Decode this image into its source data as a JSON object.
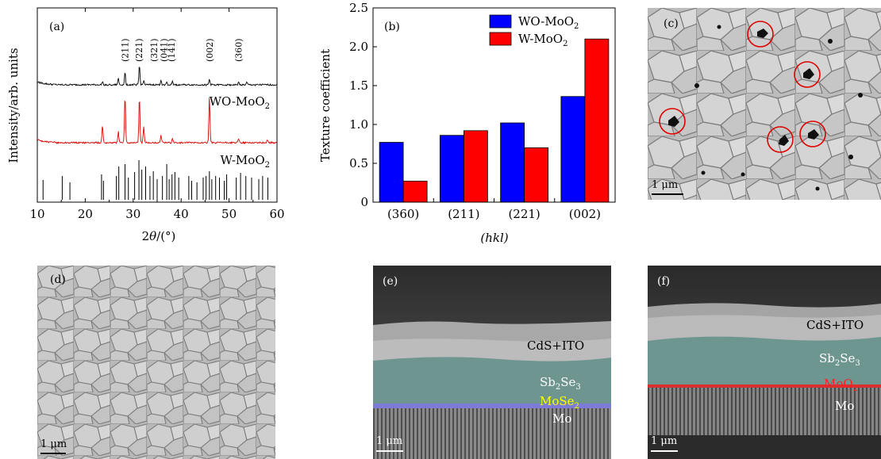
{
  "panel_a": {
    "label": "(a)",
    "xlabel_parts": [
      "2",
      "θ",
      "/(°)"
    ],
    "ylabel": "Intensity/arb. units",
    "xticks": [
      "10",
      "20",
      "30",
      "40",
      "50",
      "60"
    ],
    "sample_top": {
      "base": "WO-MoO",
      "sub": "2"
    },
    "sample_bottom": {
      "base": "W-MoO",
      "sub": "2"
    },
    "peak_labels": [
      {
        "text": "(211)",
        "x": 28.3
      },
      {
        "text": "(221)",
        "x": 31.2
      },
      {
        "text": "(321)",
        "x": 34.3
      },
      {
        "text": "(041)",
        "x": 36.4
      },
      {
        "text": "(141)",
        "x": 38.0
      },
      {
        "text": "(002)",
        "x": 45.9
      },
      {
        "text": "(360)",
        "x": 52.0
      }
    ],
    "colors": {
      "top": "#000000",
      "middle": "#e00000",
      "reference": "#000000"
    }
  },
  "chart_data": {
    "type": "bar",
    "categories": [
      "(360)",
      "(211)",
      "(221)",
      "(002)"
    ],
    "series": [
      {
        "name": "WO-MoO2",
        "color": "#0000ff",
        "values": [
          0.77,
          0.86,
          1.02,
          1.36
        ]
      },
      {
        "name": "W-MoO2",
        "color": "#ff0000",
        "values": [
          0.27,
          0.92,
          0.7,
          2.1
        ]
      }
    ],
    "ylim": [
      0,
      2.5
    ],
    "yticks": [
      "0",
      "0.5",
      "1.0",
      "1.5",
      "2.0",
      "2.5"
    ],
    "legend_placement": "top-right",
    "grid": false
  },
  "panel_b": {
    "label": "(b)",
    "ylabel": "Texture coefficient",
    "xlabel": "(hkl)",
    "legend": [
      {
        "base": "WO-MoO",
        "sub": "2"
      },
      {
        "base": "W-MoO",
        "sub": "2"
      }
    ]
  },
  "panel_c": {
    "label": "(c)",
    "scale": "1 μm"
  },
  "panel_d": {
    "label": "(d)",
    "scale": "1 μm"
  },
  "panel_e": {
    "label": "(e)",
    "scale": "1 μm",
    "layers": {
      "top": "CdS+ITO",
      "absorber": {
        "base": "Sb",
        "sub1": "2",
        "mid": "Se",
        "sub2": "3"
      },
      "interface": {
        "base": "MoSe",
        "sub": "2",
        "color": "#ffff00"
      },
      "substrate": "Mo"
    }
  },
  "panel_f": {
    "label": "(f)",
    "scale": "1 μm",
    "layers": {
      "top": "CdS+ITO",
      "absorber": {
        "base": "Sb",
        "sub1": "2",
        "mid": "Se",
        "sub2": "3"
      },
      "interface": {
        "base": "MoO",
        "sub": "2",
        "color": "#ff2020"
      },
      "substrate": "Mo"
    }
  }
}
